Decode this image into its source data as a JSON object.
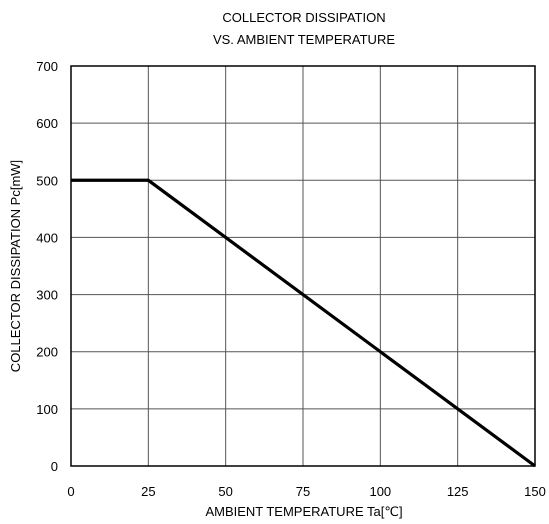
{
  "chart_data": {
    "type": "line",
    "title_line1": "COLLECTOR DISSIPATION",
    "title_line2": "VS. AMBIENT TEMPERATURE",
    "xlabel": "AMBIENT TEMPERATURE Ta[℃]",
    "ylabel": "COLLECTOR DISSIPATION Pc[mW]",
    "xlim": [
      0,
      150
    ],
    "ylim": [
      0,
      700
    ],
    "x_ticks": [
      0,
      25,
      50,
      75,
      100,
      125,
      150
    ],
    "y_ticks": [
      0,
      100,
      200,
      300,
      400,
      500,
      600,
      700
    ],
    "grid": true,
    "legend": "none",
    "series": [
      {
        "x": [
          0,
          25,
          150
        ],
        "y": [
          500,
          500,
          0
        ]
      }
    ]
  }
}
